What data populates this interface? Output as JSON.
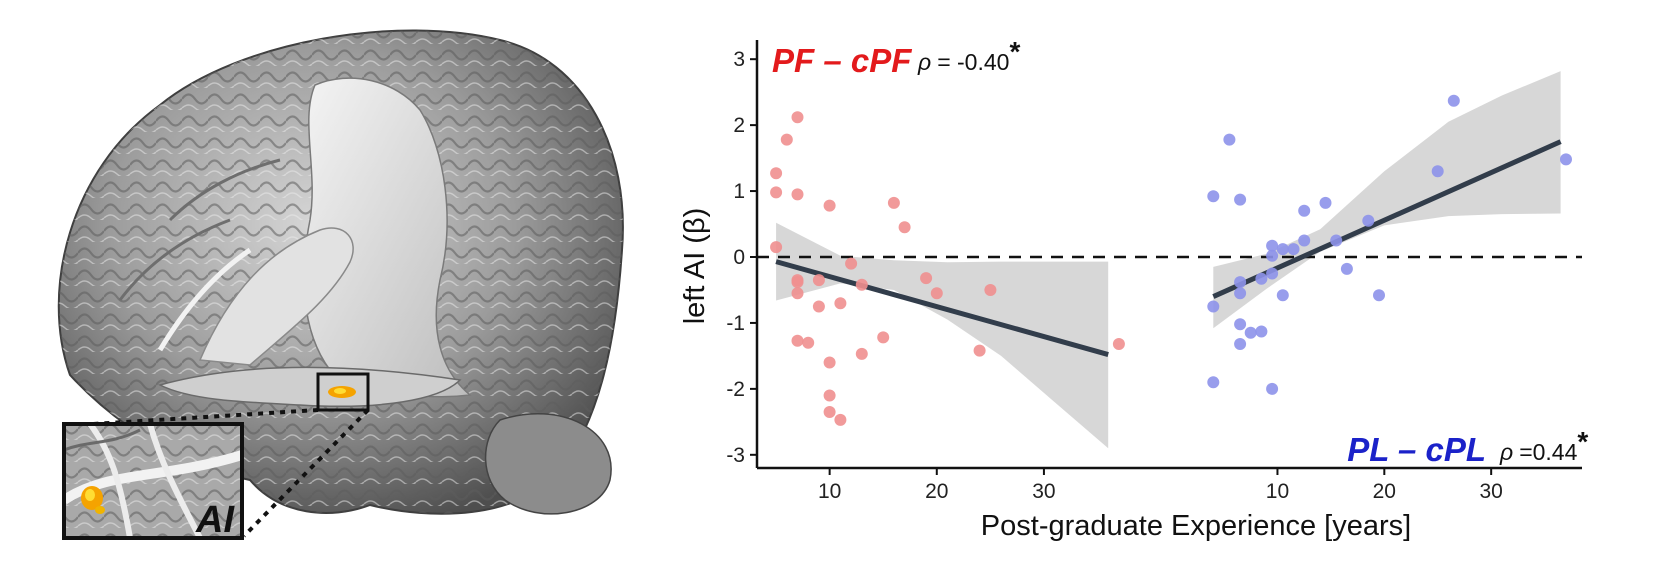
{
  "brain_panel": {
    "inset_label": "AI",
    "icon": "brain-render-icon",
    "colors": {
      "activation": "#f5a300",
      "activation_core": "#ffdd33"
    }
  },
  "chart_data": {
    "type": "scatter",
    "ylabel": "left AI (β)",
    "xlabel": "Post-graduate Experience [years]",
    "ylim": [
      -3.2,
      3.2
    ],
    "yticks": [
      "-3",
      "-2",
      "-1",
      "0",
      "1",
      "2",
      "3"
    ],
    "reference_line": {
      "y": 0,
      "style": "dashed"
    },
    "fit_line_color": "#323d4b",
    "ci_color": "#d3d3d3",
    "panels": [
      {
        "group_label": "PF – cPF",
        "rho_symbol": "ρ",
        "rho_text": "= -0.40",
        "significance": "*",
        "color": "#e31a1c",
        "point_color": "#ef8f8f",
        "xlim": [
          3.5,
          38.5
        ],
        "xticks": [
          "10",
          "20",
          "30"
        ],
        "points": [
          [
            5.0,
            1.27
          ],
          [
            5.0,
            0.98
          ],
          [
            5.0,
            0.15
          ],
          [
            6.0,
            1.78
          ],
          [
            7.0,
            2.12
          ],
          [
            7.0,
            0.95
          ],
          [
            7.0,
            -0.35
          ],
          [
            7.0,
            -0.38
          ],
          [
            7.0,
            -0.55
          ],
          [
            7.0,
            -1.27
          ],
          [
            8.0,
            -1.3
          ],
          [
            9.0,
            -0.35
          ],
          [
            9.0,
            -0.75
          ],
          [
            10.0,
            0.78
          ],
          [
            10.0,
            -1.6
          ],
          [
            10.0,
            -2.1
          ],
          [
            10.0,
            -2.35
          ],
          [
            11.0,
            -2.47
          ],
          [
            11.0,
            -0.7
          ],
          [
            12.0,
            -0.1
          ],
          [
            13.0,
            -0.42
          ],
          [
            13.0,
            -1.47
          ],
          [
            15.0,
            -1.22
          ],
          [
            16.0,
            0.82
          ],
          [
            17.0,
            0.45
          ],
          [
            19.0,
            -0.32
          ],
          [
            20.0,
            -0.55
          ],
          [
            24.0,
            -1.42
          ],
          [
            25.0,
            -0.5
          ],
          [
            37.0,
            -1.32
          ]
        ],
        "fit": {
          "x": [
            5.0,
            36.0
          ],
          "y": [
            -0.07,
            -1.48
          ]
        },
        "ci": {
          "x": [
            5.0,
            11.0,
            16.0,
            21.0,
            26.0,
            31.0,
            36.0
          ],
          "lower": [
            -0.66,
            -0.4,
            -0.5,
            -0.95,
            -1.5,
            -2.2,
            -2.9
          ],
          "upper": [
            0.52,
            0.02,
            -0.05,
            -0.08,
            -0.07,
            -0.07,
            -0.07
          ]
        }
      },
      {
        "group_label": "PL – cPL",
        "rho_symbol": "ρ",
        "rho_text": "=0.44",
        "significance": "*",
        "color": "#1b22c9",
        "point_color": "#8d92ea",
        "xlim": [
          3.5,
          38.5
        ],
        "xticks": [
          "10",
          "20",
          "30"
        ],
        "points": [
          [
            4.0,
            0.92
          ],
          [
            4.0,
            -0.75
          ],
          [
            4.0,
            -1.9
          ],
          [
            5.5,
            1.78
          ],
          [
            6.5,
            0.87
          ],
          [
            6.5,
            -0.38
          ],
          [
            6.5,
            -0.55
          ],
          [
            6.5,
            -1.02
          ],
          [
            6.5,
            -1.32
          ],
          [
            7.5,
            -1.15
          ],
          [
            8.5,
            -1.13
          ],
          [
            8.5,
            -0.33
          ],
          [
            9.5,
            0.17
          ],
          [
            9.5,
            0.02
          ],
          [
            9.5,
            -0.25
          ],
          [
            9.5,
            -2.0
          ],
          [
            10.5,
            0.12
          ],
          [
            10.5,
            -0.58
          ],
          [
            11.5,
            0.12
          ],
          [
            12.5,
            0.7
          ],
          [
            12.5,
            0.25
          ],
          [
            14.5,
            0.82
          ],
          [
            15.5,
            0.25
          ],
          [
            16.5,
            -0.18
          ],
          [
            18.5,
            0.55
          ],
          [
            19.5,
            -0.58
          ],
          [
            25.0,
            1.3
          ],
          [
            26.5,
            2.37
          ],
          [
            37.0,
            1.48
          ]
        ],
        "fit": {
          "x": [
            4.0,
            36.5
          ],
          "y": [
            -0.6,
            1.75
          ]
        },
        "ci": {
          "x": [
            4.0,
            9.0,
            14.0,
            20.0,
            26.0,
            31.0,
            36.5
          ],
          "lower": [
            -1.08,
            -0.48,
            0.08,
            0.48,
            0.62,
            0.65,
            0.66
          ],
          "upper": [
            -0.15,
            0.05,
            0.42,
            1.3,
            2.05,
            2.45,
            2.82
          ]
        }
      }
    ]
  }
}
